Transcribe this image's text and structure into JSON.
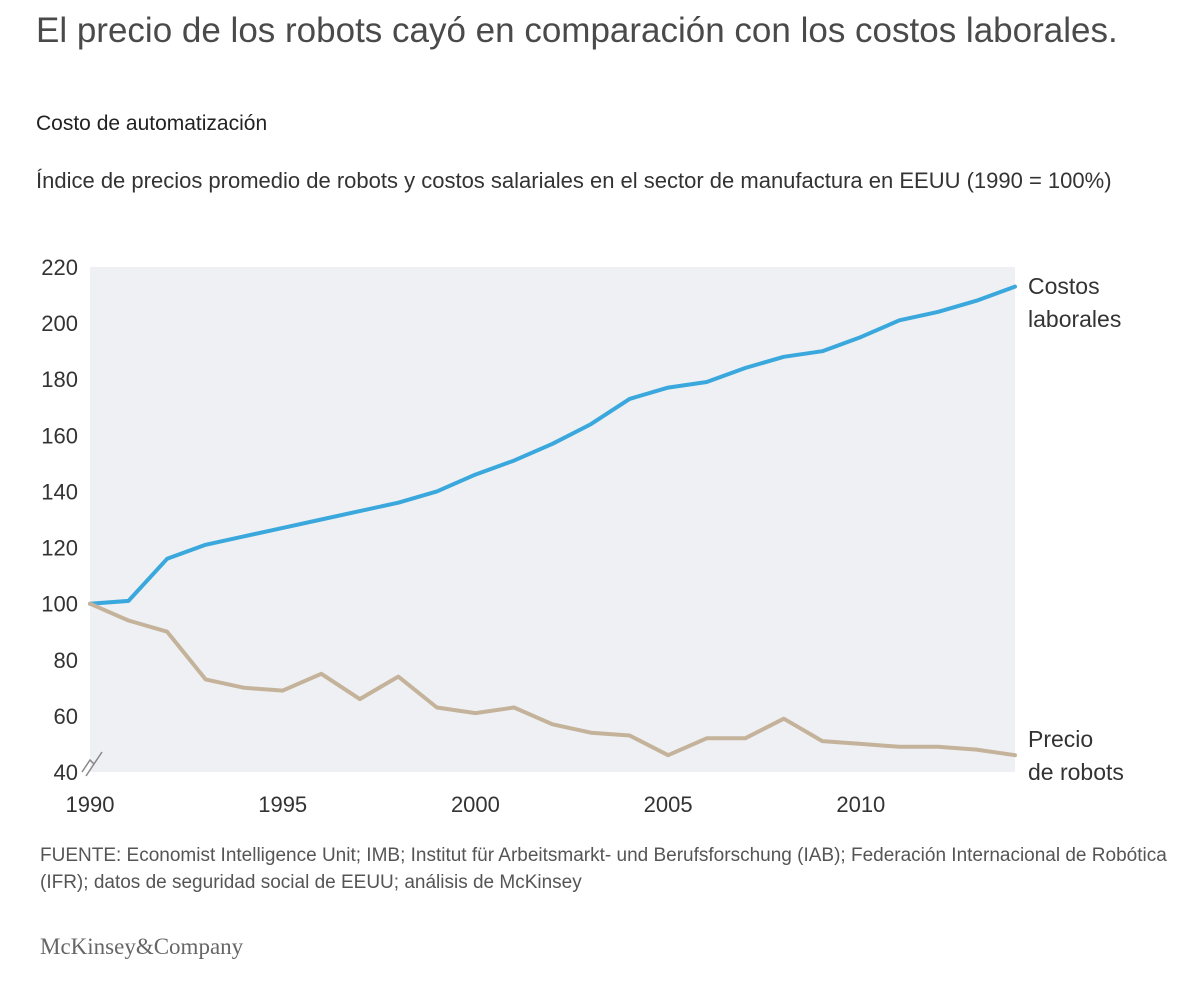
{
  "header": {
    "title": "El precio de los robots cayó en comparación con los costos laborales.",
    "subtitle": "Costo de automatización",
    "description": "Índice de precios promedio de robots y costos salariales en el sector de manufactura en EEUU (1990 = 100%)"
  },
  "footer": {
    "source": "FUENTE: Economist Intelligence Unit; IMB; Institut für Arbeitsmarkt- und Berufsforschung (IAB); Federación Internacional de Robótica (IFR); datos de seguridad social de EEUU; análisis de McKinsey",
    "brand": "McKinsey&Company"
  },
  "colors": {
    "labor": "#3aa8dc",
    "robots": "#c4b39a",
    "plot_background": "#eef0f4"
  },
  "chart_data": {
    "type": "line",
    "title": "El precio de los robots cayó en comparación con los costos laborales.",
    "xlabel": "",
    "ylabel": "",
    "xlim": [
      1990,
      2014
    ],
    "ylim": [
      40,
      220
    ],
    "y_axis_break": true,
    "grid": false,
    "x_ticks": [
      1990,
      1995,
      2000,
      2005,
      2010
    ],
    "y_ticks": [
      40,
      60,
      80,
      100,
      120,
      140,
      160,
      180,
      200,
      220
    ],
    "x": [
      1990,
      1991,
      1992,
      1993,
      1994,
      1995,
      1996,
      1997,
      1998,
      1999,
      2000,
      2001,
      2002,
      2003,
      2004,
      2005,
      2006,
      2007,
      2008,
      2009,
      2010,
      2011,
      2012,
      2013,
      2014
    ],
    "series": [
      {
        "name": "Costos laborales",
        "label_lines": [
          "Costos",
          "laborales"
        ],
        "color": "#3aa8dc",
        "values": [
          100,
          101,
          116,
          121,
          124,
          127,
          130,
          133,
          136,
          140,
          146,
          151,
          157,
          164,
          173,
          177,
          179,
          184,
          188,
          190,
          195,
          201,
          204,
          208,
          213
        ]
      },
      {
        "name": "Precio de robots",
        "label_lines": [
          "Precio",
          "de robots"
        ],
        "color": "#c4b39a",
        "values": [
          100,
          94,
          90,
          73,
          70,
          69,
          75,
          66,
          74,
          63,
          61,
          63,
          57,
          54,
          53,
          46,
          52,
          52,
          59,
          51,
          50,
          49,
          49,
          48,
          46
        ]
      }
    ]
  }
}
